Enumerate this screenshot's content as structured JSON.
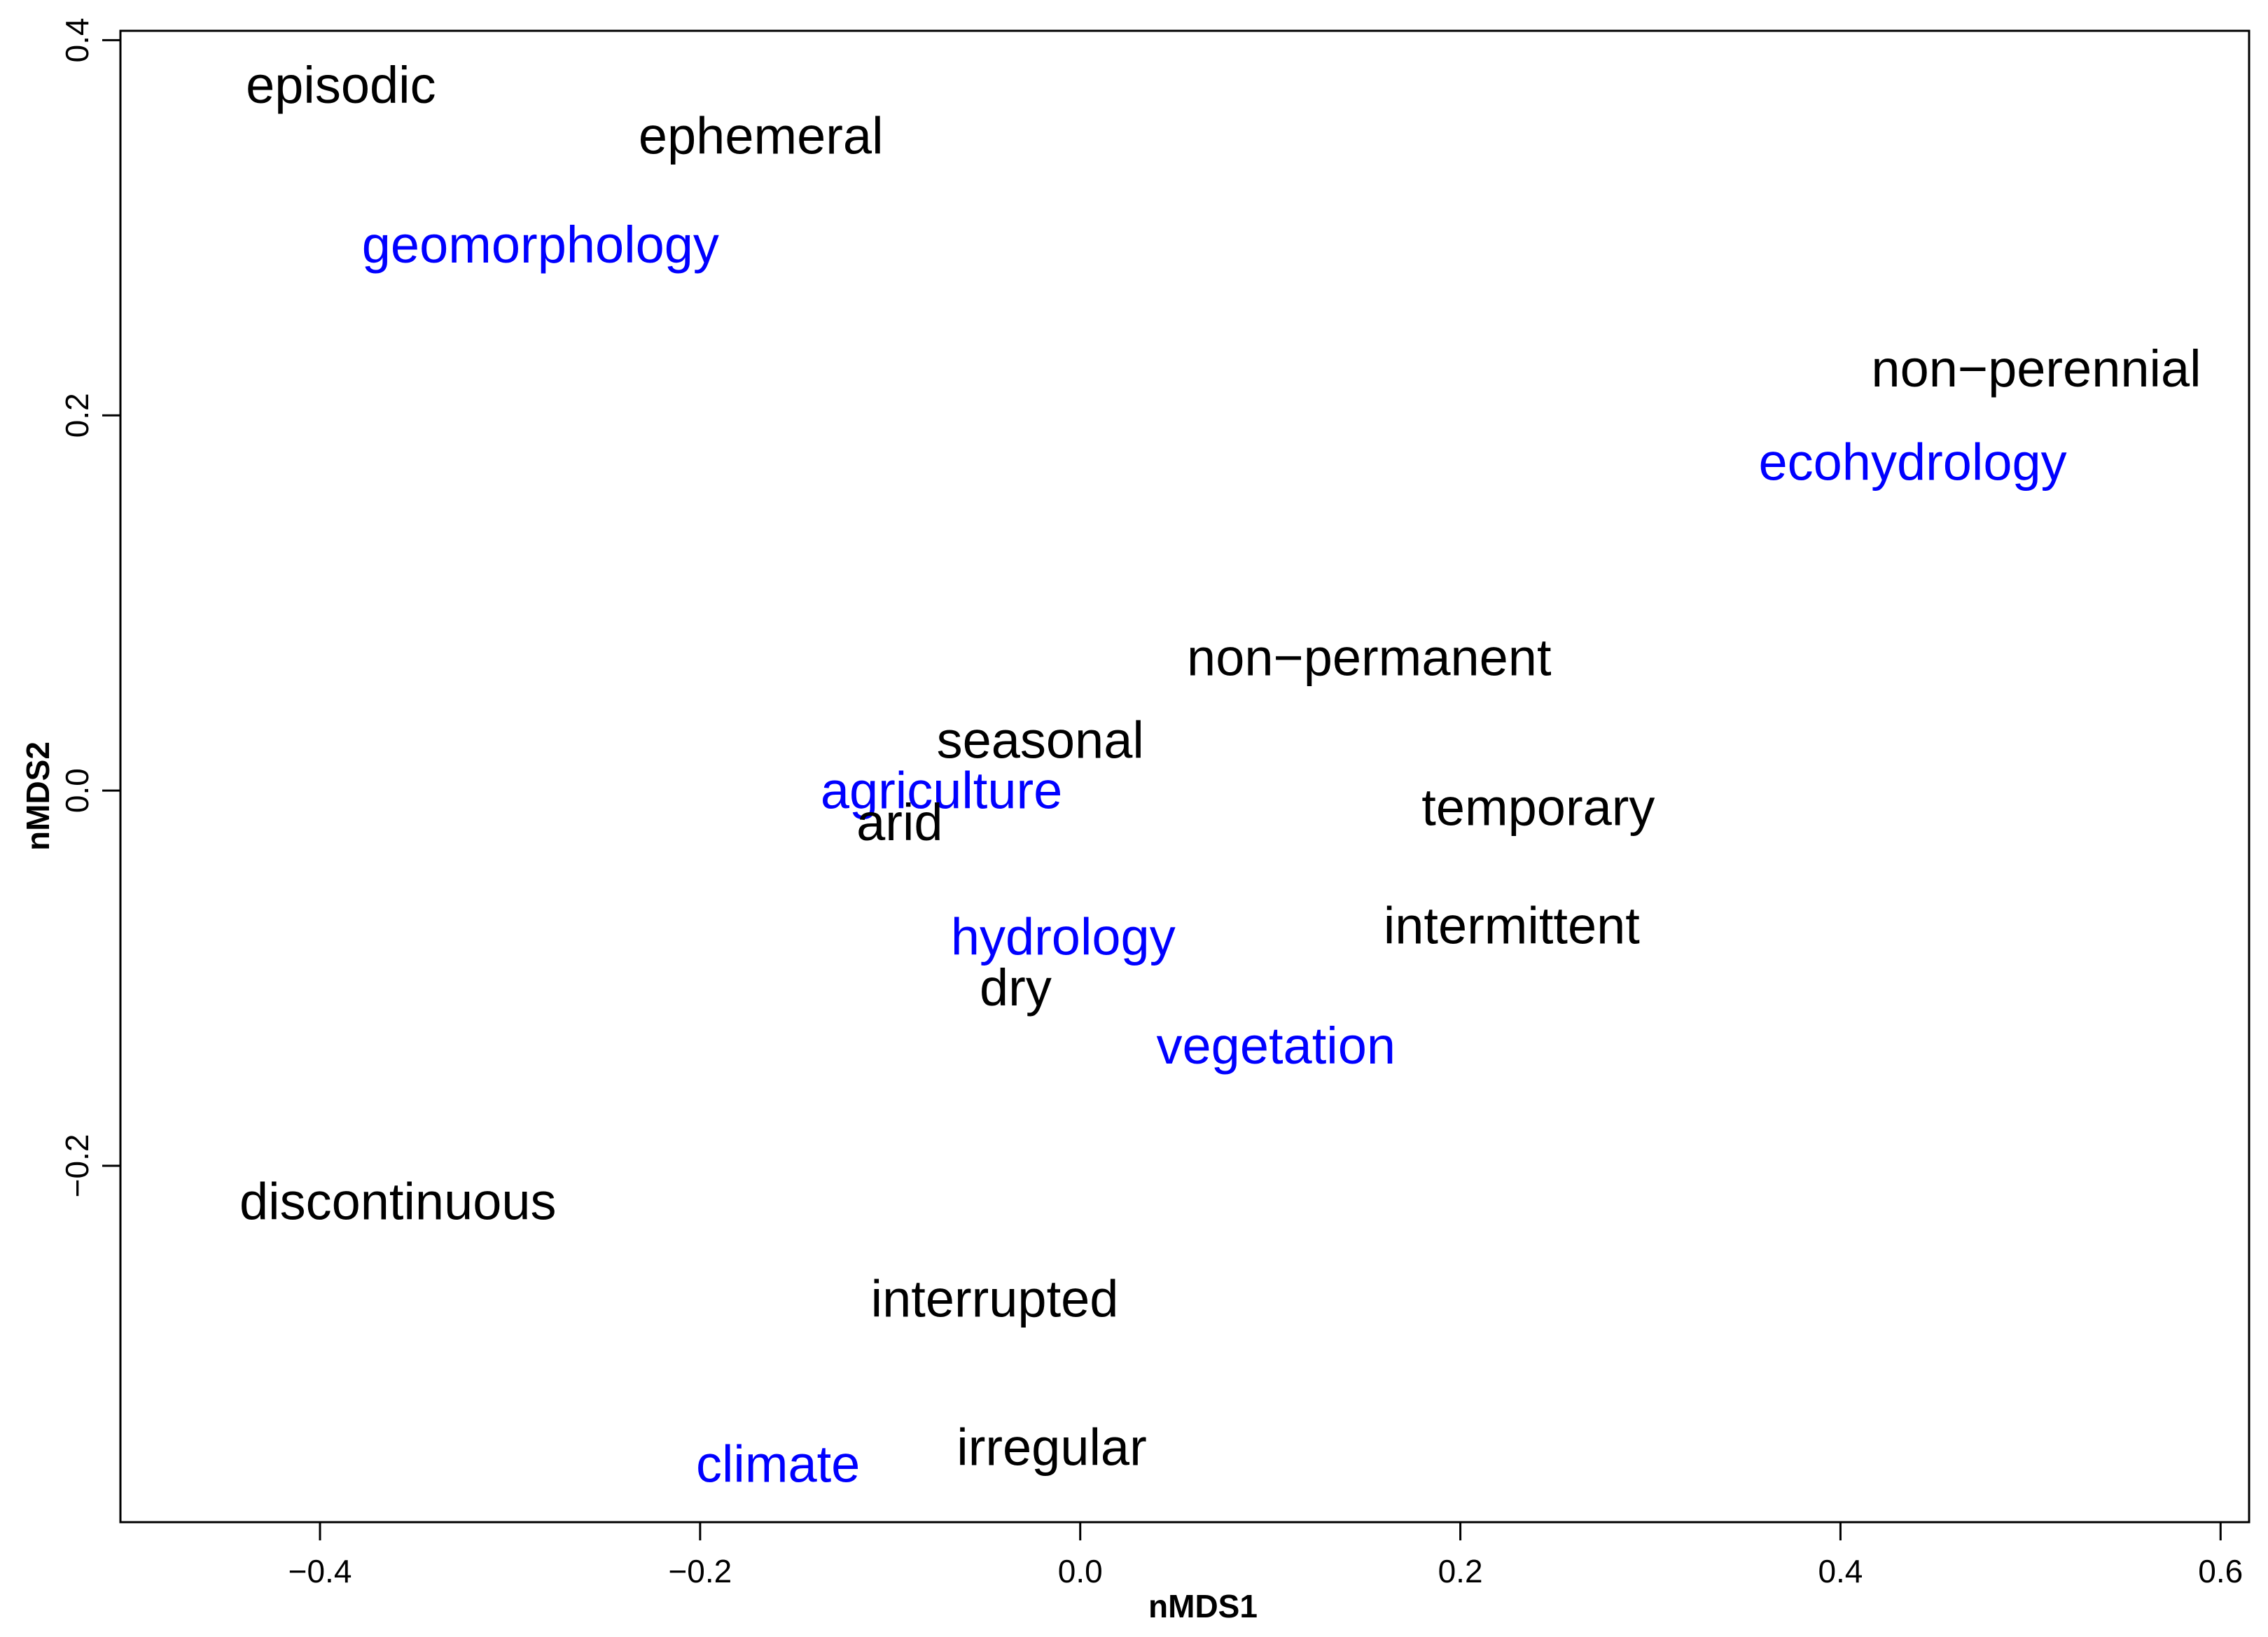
{
  "chart_data": {
    "type": "scatter",
    "title": "",
    "xlabel": "nMDS1",
    "ylabel": "nMDS2",
    "xlim": [
      -0.505,
      0.615
    ],
    "ylim": [
      -0.39,
      0.405
    ],
    "grid": false,
    "x_ticks": [
      -0.4,
      -0.2,
      0.0,
      0.2,
      0.4,
      0.6
    ],
    "x_tick_labels": [
      "−0.4",
      "−0.2",
      "0.0",
      "0.2",
      "0.4",
      "0.6"
    ],
    "y_ticks": [
      -0.2,
      0.0,
      0.2,
      0.4
    ],
    "y_tick_labels": [
      "−0.2",
      "0.0",
      "0.2",
      "0.4"
    ],
    "colors": {
      "term": "#000000",
      "discipline": "#0000ff"
    },
    "points": [
      {
        "label": "episodic",
        "x": -0.389,
        "y": 0.376,
        "group": "term"
      },
      {
        "label": "ephemeral",
        "x": -0.168,
        "y": 0.349,
        "group": "term"
      },
      {
        "label": "geomorphology",
        "x": -0.284,
        "y": 0.291,
        "group": "discipline"
      },
      {
        "label": "non−perennial",
        "x": 0.503,
        "y": 0.225,
        "group": "term"
      },
      {
        "label": "ecohydrology",
        "x": 0.438,
        "y": 0.175,
        "group": "discipline"
      },
      {
        "label": "non−permanent",
        "x": 0.152,
        "y": 0.071,
        "group": "term"
      },
      {
        "label": "seasonal",
        "x": -0.021,
        "y": 0.027,
        "group": "term"
      },
      {
        "label": "agriculture",
        "x": -0.073,
        "y": 0.0,
        "group": "discipline"
      },
      {
        "label": "arid",
        "x": -0.095,
        "y": -0.017,
        "group": "term"
      },
      {
        "label": "temporary",
        "x": 0.241,
        "y": -0.009,
        "group": "term"
      },
      {
        "label": "intermittent",
        "x": 0.227,
        "y": -0.072,
        "group": "term"
      },
      {
        "label": "hydrology",
        "x": -0.009,
        "y": -0.078,
        "group": "discipline"
      },
      {
        "label": "dry",
        "x": -0.034,
        "y": -0.105,
        "group": "term"
      },
      {
        "label": "vegetation",
        "x": 0.103,
        "y": -0.136,
        "group": "discipline"
      },
      {
        "label": "discontinuous",
        "x": -0.359,
        "y": -0.219,
        "group": "term"
      },
      {
        "label": "interrupted",
        "x": -0.045,
        "y": -0.271,
        "group": "term"
      },
      {
        "label": "climate",
        "x": -0.159,
        "y": -0.359,
        "group": "discipline"
      },
      {
        "label": "irregular",
        "x": -0.015,
        "y": -0.35,
        "group": "term"
      }
    ]
  }
}
